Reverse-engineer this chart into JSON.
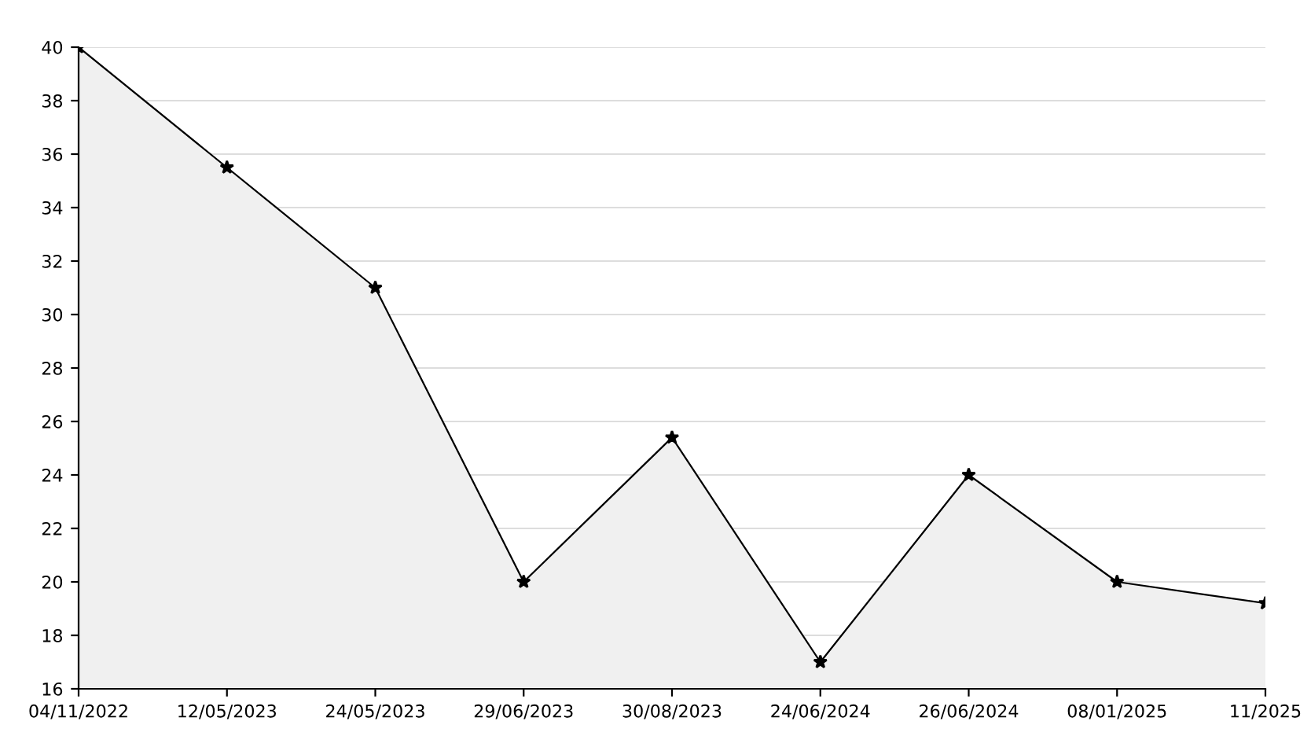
{
  "chart_data": {
    "type": "area",
    "categories": [
      "04/11/2022",
      "12/05/2023",
      "24/05/2023",
      "29/06/2023",
      "30/08/2023",
      "24/06/2024",
      "26/06/2024",
      "08/01/2025",
      "11/2025"
    ],
    "series": [
      {
        "color": "#000000",
        "values": [
          40,
          35.5,
          31,
          20,
          25.4,
          17,
          24,
          20,
          19.2
        ]
      }
    ],
    "ylim": [
      16,
      40
    ],
    "yticks": [
      16,
      18,
      20,
      22,
      24,
      26,
      28,
      30,
      32,
      34,
      36,
      38,
      40
    ],
    "grid": "y",
    "marker": "star",
    "line_style": "solid",
    "legend": false
  }
}
